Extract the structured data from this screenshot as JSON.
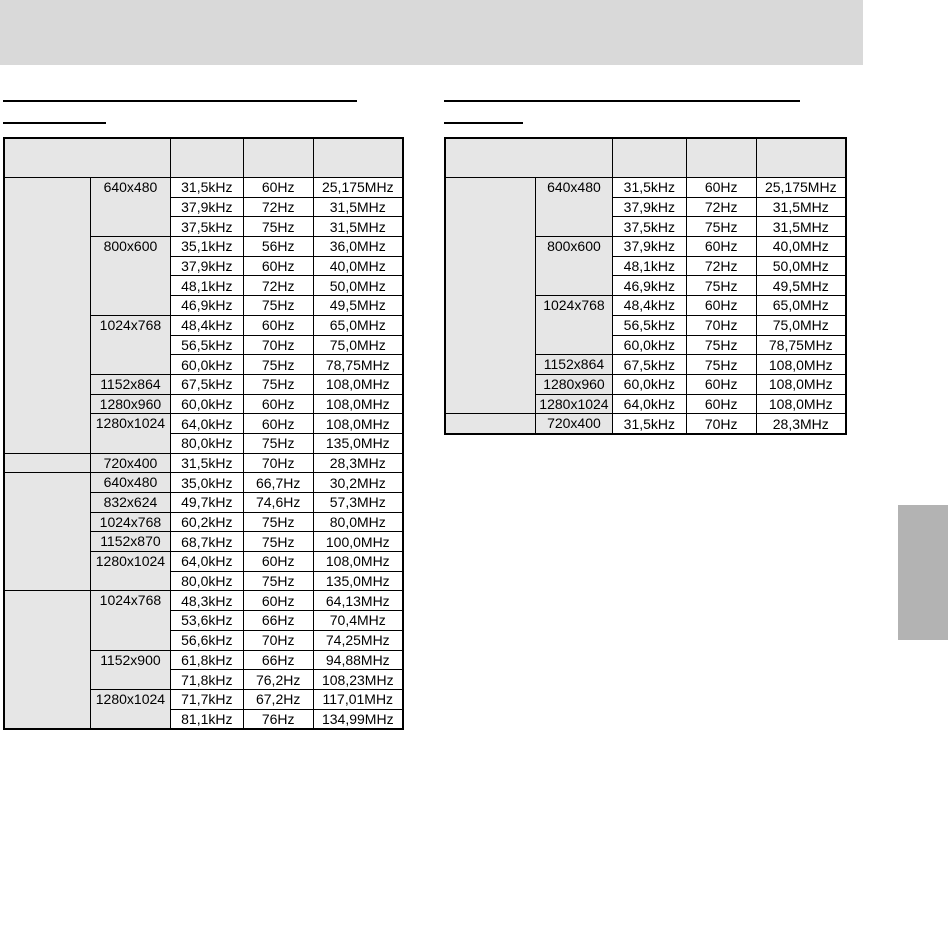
{
  "colors": {
    "header_bar": "#d9d9d9",
    "side_tab": "#b3b3b3",
    "cell_shade": "#e6e6e6"
  },
  "tables": [
    {
      "groups": [
        {
          "modes": [
            {
              "resolution": "640x480",
              "rows": [
                [
                  "31,5kHz",
                  "60Hz",
                  "25,175MHz"
                ],
                [
                  "37,9kHz",
                  "72Hz",
                  "31,5MHz"
                ],
                [
                  "37,5kHz",
                  "75Hz",
                  "31,5MHz"
                ]
              ]
            },
            {
              "resolution": "800x600",
              "rows": [
                [
                  "35,1kHz",
                  "56Hz",
                  "36,0MHz"
                ],
                [
                  "37,9kHz",
                  "60Hz",
                  "40,0MHz"
                ],
                [
                  "48,1kHz",
                  "72Hz",
                  "50,0MHz"
                ],
                [
                  "46,9kHz",
                  "75Hz",
                  "49,5MHz"
                ]
              ]
            },
            {
              "resolution": "1024x768",
              "rows": [
                [
                  "48,4kHz",
                  "60Hz",
                  "65,0MHz"
                ],
                [
                  "56,5kHz",
                  "70Hz",
                  "75,0MHz"
                ],
                [
                  "60,0kHz",
                  "75Hz",
                  "78,75MHz"
                ]
              ]
            },
            {
              "resolution": "1152x864",
              "rows": [
                [
                  "67,5kHz",
                  "75Hz",
                  "108,0MHz"
                ]
              ]
            },
            {
              "resolution": "1280x960",
              "rows": [
                [
                  "60,0kHz",
                  "60Hz",
                  "108,0MHz"
                ]
              ]
            },
            {
              "resolution": "1280x1024",
              "rows": [
                [
                  "64,0kHz",
                  "60Hz",
                  "108,0MHz"
                ],
                [
                  "80,0kHz",
                  "75Hz",
                  "135,0MHz"
                ]
              ]
            }
          ]
        },
        {
          "modes": [
            {
              "resolution": "720x400",
              "rows": [
                [
                  "31,5kHz",
                  "70Hz",
                  "28,3MHz"
                ]
              ]
            }
          ]
        },
        {
          "modes": [
            {
              "resolution": "640x480",
              "rows": [
                [
                  "35,0kHz",
                  "66,7Hz",
                  "30,2MHz"
                ]
              ]
            },
            {
              "resolution": "832x624",
              "rows": [
                [
                  "49,7kHz",
                  "74,6Hz",
                  "57,3MHz"
                ]
              ]
            },
            {
              "resolution": "1024x768",
              "rows": [
                [
                  "60,2kHz",
                  "75Hz",
                  "80,0MHz"
                ]
              ]
            },
            {
              "resolution": "1152x870",
              "rows": [
                [
                  "68,7kHz",
                  "75Hz",
                  "100,0MHz"
                ]
              ]
            },
            {
              "resolution": "1280x1024",
              "rows": [
                [
                  "64,0kHz",
                  "60Hz",
                  "108,0MHz"
                ],
                [
                  "80,0kHz",
                  "75Hz",
                  "135,0MHz"
                ]
              ]
            }
          ]
        },
        {
          "modes": [
            {
              "resolution": "1024x768",
              "rows": [
                [
                  "48,3kHz",
                  "60Hz",
                  "64,13MHz"
                ],
                [
                  "53,6kHz",
                  "66Hz",
                  "70,4MHz"
                ],
                [
                  "56,6kHz",
                  "70Hz",
                  "74,25MHz"
                ]
              ]
            },
            {
              "resolution": "1152x900",
              "rows": [
                [
                  "61,8kHz",
                  "66Hz",
                  "94,88MHz"
                ],
                [
                  "71,8kHz",
                  "76,2Hz",
                  "108,23MHz"
                ]
              ]
            },
            {
              "resolution": "1280x1024",
              "rows": [
                [
                  "71,7kHz",
                  "67,2Hz",
                  "117,01MHz"
                ],
                [
                  "81,1kHz",
                  "76Hz",
                  "134,99MHz"
                ]
              ]
            }
          ]
        }
      ]
    },
    {
      "groups": [
        {
          "modes": [
            {
              "resolution": "640x480",
              "rows": [
                [
                  "31,5kHz",
                  "60Hz",
                  "25,175MHz"
                ],
                [
                  "37,9kHz",
                  "72Hz",
                  "31,5MHz"
                ],
                [
                  "37,5kHz",
                  "75Hz",
                  "31,5MHz"
                ]
              ]
            },
            {
              "resolution": "800x600",
              "rows": [
                [
                  "37,9kHz",
                  "60Hz",
                  "40,0MHz"
                ],
                [
                  "48,1kHz",
                  "72Hz",
                  "50,0MHz"
                ],
                [
                  "46,9kHz",
                  "75Hz",
                  "49,5MHz"
                ]
              ]
            },
            {
              "resolution": "1024x768",
              "rows": [
                [
                  "48,4kHz",
                  "60Hz",
                  "65,0MHz"
                ],
                [
                  "56,5kHz",
                  "70Hz",
                  "75,0MHz"
                ],
                [
                  "60,0kHz",
                  "75Hz",
                  "78,75MHz"
                ]
              ]
            },
            {
              "resolution": "1152x864",
              "rows": [
                [
                  "67,5kHz",
                  "75Hz",
                  "108,0MHz"
                ]
              ]
            },
            {
              "resolution": "1280x960",
              "rows": [
                [
                  "60,0kHz",
                  "60Hz",
                  "108,0MHz"
                ]
              ]
            },
            {
              "resolution": "1280x1024",
              "rows": [
                [
                  "64,0kHz",
                  "60Hz",
                  "108,0MHz"
                ]
              ]
            }
          ]
        },
        {
          "modes": [
            {
              "resolution": "720x400",
              "rows": [
                [
                  "31,5kHz",
                  "70Hz",
                  "28,3MHz"
                ]
              ]
            }
          ]
        }
      ]
    }
  ]
}
